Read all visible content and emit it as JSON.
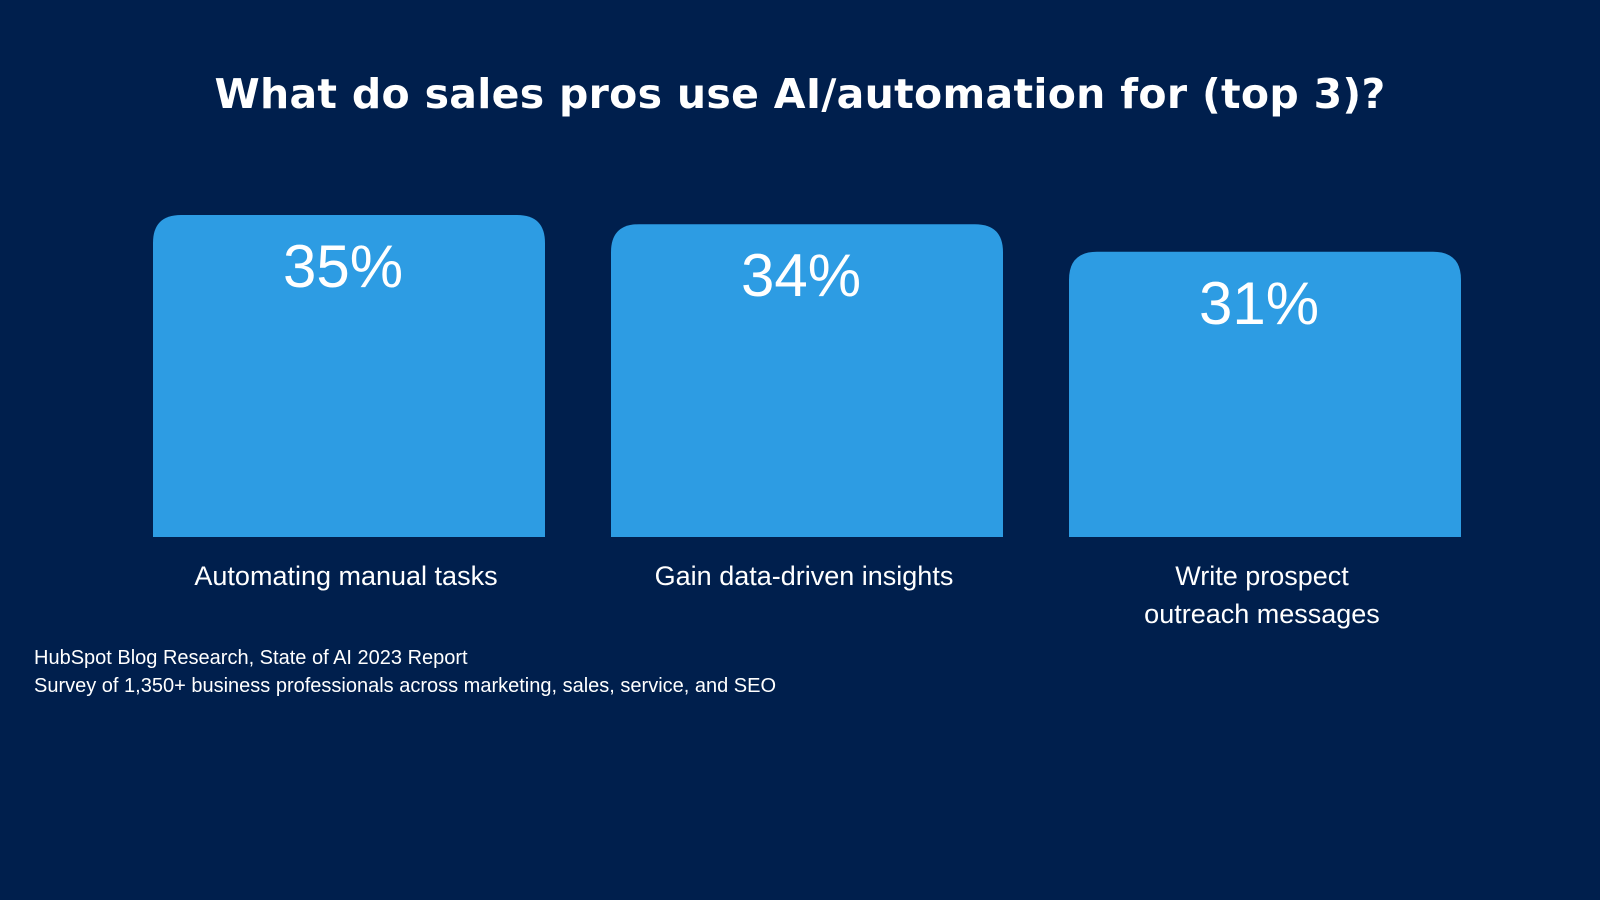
{
  "chart_data": {
    "type": "bar",
    "title": "What do sales pros use AI/automation for (top 3)?",
    "categories": [
      "Automating manual tasks",
      "Gain data-driven insights",
      "Write prospect outreach messages"
    ],
    "category_lines": [
      [
        "Automating manual tasks"
      ],
      [
        "Gain data-driven insights"
      ],
      [
        "Write prospect",
        "outreach messages"
      ]
    ],
    "values": [
      35,
      34,
      31
    ],
    "value_labels": [
      "35%",
      "34%",
      "31%"
    ],
    "unit": "%",
    "xlabel": "",
    "ylabel": "",
    "grid": false,
    "bar_color": "#2D9CE3",
    "background_color": "#001F4D"
  },
  "source": {
    "line1": "HubSpot Blog Research, State of AI 2023 Report",
    "line2": "Survey of 1,350+ business professionals across marketing, sales, service, and SEO"
  }
}
